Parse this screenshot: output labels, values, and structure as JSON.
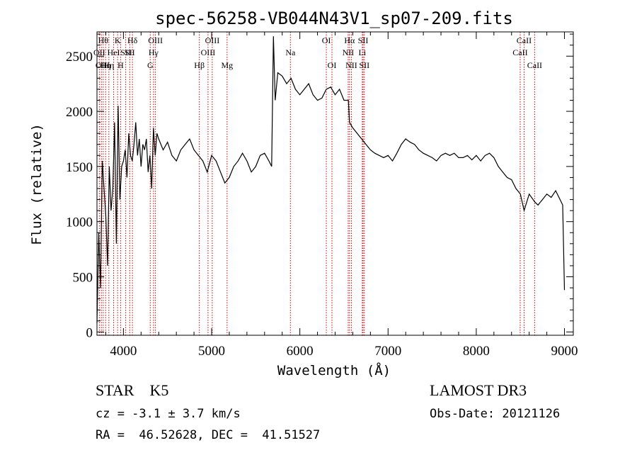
{
  "chart_data": {
    "type": "line",
    "title": "spec-56258-VB044N43V1_sp07-209.fits",
    "xlabel": "Wavelength (Å)",
    "ylabel": "Flux (relative)",
    "xlim": [
      3700,
      9100
    ],
    "ylim": [
      -30,
      2720
    ],
    "x_ticks": [
      4000,
      5000,
      6000,
      7000,
      8000,
      9000
    ],
    "y_ticks": [
      0,
      500,
      1000,
      1500,
      2000,
      2500
    ],
    "grid": false,
    "legend": "none",
    "line_color": "#000000",
    "marker_line_color": "#cc0000",
    "series": [
      {
        "x": [
          3700,
          3720,
          3740,
          3760,
          3780,
          3800,
          3820,
          3840,
          3860,
          3880,
          3900,
          3920,
          3940,
          3960,
          3980,
          4000,
          4020,
          4040,
          4060,
          4080,
          4100,
          4120,
          4140,
          4160,
          4180,
          4200,
          4220,
          4240,
          4260,
          4280,
          4300,
          4320,
          4340,
          4360,
          4380,
          4400,
          4450,
          4500,
          4550,
          4600,
          4650,
          4700,
          4750,
          4800,
          4850,
          4900,
          4950,
          5000,
          5050,
          5100,
          5150,
          5200,
          5250,
          5300,
          5350,
          5400,
          5450,
          5500,
          5550,
          5600,
          5650,
          5680,
          5700,
          5720,
          5750,
          5800,
          5850,
          5900,
          5950,
          6000,
          6050,
          6100,
          6150,
          6200,
          6250,
          6300,
          6350,
          6400,
          6450,
          6500,
          6550,
          6563,
          6600,
          6650,
          6700,
          6750,
          6800,
          6850,
          6900,
          6950,
          7000,
          7050,
          7100,
          7150,
          7200,
          7250,
          7300,
          7350,
          7400,
          7450,
          7500,
          7550,
          7600,
          7650,
          7700,
          7750,
          7800,
          7850,
          7900,
          7950,
          8000,
          8050,
          8100,
          8150,
          8200,
          8250,
          8300,
          8350,
          8400,
          8450,
          8500,
          8542,
          8600,
          8662,
          8700,
          8750,
          8800,
          8850,
          8900,
          8950,
          8980,
          9000
        ],
        "y": [
          80,
          900,
          400,
          1550,
          1300,
          1050,
          600,
          1500,
          1100,
          1300,
          1900,
          800,
          2050,
          1200,
          1500,
          1550,
          1650,
          1400,
          1800,
          1600,
          1550,
          1700,
          1900,
          1600,
          1750,
          1500,
          1700,
          1650,
          1750,
          1450,
          1600,
          1300,
          1850,
          1600,
          1800,
          1750,
          1650,
          1720,
          1600,
          1550,
          1650,
          1700,
          1750,
          1650,
          1600,
          1550,
          1450,
          1600,
          1550,
          1450,
          1350,
          1400,
          1500,
          1550,
          1620,
          1550,
          1450,
          1500,
          1600,
          1620,
          1550,
          1500,
          2680,
          2100,
          2350,
          2320,
          2250,
          2300,
          2200,
          2150,
          2200,
          2250,
          2150,
          2100,
          2120,
          2200,
          2220,
          2150,
          2200,
          2100,
          2100,
          1900,
          1850,
          1800,
          1750,
          1700,
          1650,
          1620,
          1600,
          1580,
          1600,
          1550,
          1620,
          1700,
          1750,
          1720,
          1700,
          1650,
          1620,
          1600,
          1580,
          1550,
          1600,
          1620,
          1600,
          1620,
          1580,
          1580,
          1600,
          1560,
          1600,
          1550,
          1600,
          1620,
          1580,
          1500,
          1450,
          1400,
          1380,
          1300,
          1250,
          1100,
          1250,
          1180,
          1150,
          1200,
          1250,
          1220,
          1280,
          1200,
          1150,
          380
        ]
      }
    ],
    "lines": [
      {
        "w": 3727,
        "label": "OII",
        "row": 2
      },
      {
        "w": 3750,
        "label": "OII",
        "row": 3
      },
      {
        "w": 3771,
        "label": "Hθ",
        "row": 1
      },
      {
        "w": 3798,
        "label": "Hη",
        "row": 3
      },
      {
        "w": 3835,
        "label": "Hη",
        "row": 3
      },
      {
        "w": 3889,
        "label": "HeI",
        "row": 2
      },
      {
        "w": 3934,
        "label": "K",
        "row": 1
      },
      {
        "w": 3968,
        "label": "H",
        "row": 3
      },
      {
        "w": 4026,
        "label": "SII",
        "row": 2
      },
      {
        "w": 4072,
        "label": "SII",
        "row": 2
      },
      {
        "w": 4102,
        "label": "Hδ",
        "row": 1
      },
      {
        "w": 4304,
        "label": "G",
        "row": 3
      },
      {
        "w": 4341,
        "label": "Hγ",
        "row": 2
      },
      {
        "w": 4363,
        "label": "OIII",
        "row": 1
      },
      {
        "w": 4861,
        "label": "Hβ",
        "row": 3
      },
      {
        "w": 4959,
        "label": "OIII",
        "row": 2
      },
      {
        "w": 5007,
        "label": "OIII",
        "row": 1
      },
      {
        "w": 5175,
        "label": "Mg",
        "row": 3
      },
      {
        "w": 5893,
        "label": "Na",
        "row": 2
      },
      {
        "w": 6300,
        "label": "OI",
        "row": 1
      },
      {
        "w": 6364,
        "label": "OI",
        "row": 3
      },
      {
        "w": 6548,
        "label": "NII",
        "row": 2
      },
      {
        "w": 6563,
        "label": "Hα",
        "row": 1
      },
      {
        "w": 6584,
        "label": "NII",
        "row": 3
      },
      {
        "w": 6717,
        "label": "SII",
        "row": 1
      },
      {
        "w": 6731,
        "label": "SII",
        "row": 3
      },
      {
        "w": 6708,
        "label": "Li",
        "row": 2
      },
      {
        "w": 8498,
        "label": "CaII",
        "row": 2
      },
      {
        "w": 8542,
        "label": "CaII",
        "row": 1
      },
      {
        "w": 8662,
        "label": "CaII",
        "row": 3
      }
    ]
  },
  "info": {
    "class_text": "STAR    K5",
    "survey_text": "LAMOST DR3",
    "cz_text": "cz = -3.1 ± 3.7 km/s",
    "date_text": "Obs-Date: 20121126",
    "coords_text": "RA =  46.52628, DEC =  41.51527"
  }
}
